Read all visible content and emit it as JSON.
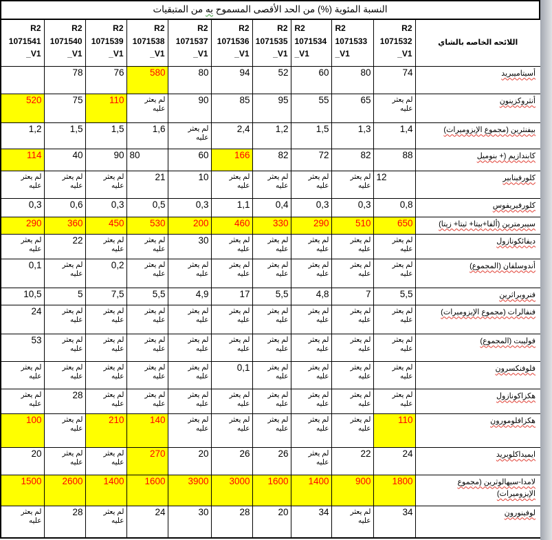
{
  "title": {
    "pre": "النسبة المئوية (%) من الحد الأقصى المسموح",
    "grammar_marked": "به",
    "post": "من المتبقيات"
  },
  "colors": {
    "highlight": "#ffff00",
    "alert_text": "#ff0000",
    "spellcheck_underline": "#e03a2f",
    "grammar_underline": "#3a9a3a",
    "strip_from": "#a3a8b0",
    "strip_to": "#dfe1e4"
  },
  "table": {
    "not_found_text": "لم يعثر عليه",
    "label_column_header": "اللائحه الخاصه بالشاي",
    "columns": [
      {
        "label": "R2\n1071541\n_V1"
      },
      {
        "label": "R2\n1071540\n_V1"
      },
      {
        "label": "R2\n1071539\n_V1"
      },
      {
        "label": "R2\n1071538\n_V1"
      },
      {
        "label": "R2\n1071537\n_V1"
      },
      {
        "label": "R2\n1071536\n_V1"
      },
      {
        "label": "R2\n1071535\n_V1"
      },
      {
        "label": "R2\n1071534\n_V1",
        "align": "left"
      },
      {
        "label": "R2\n1071533\n_V1",
        "align": "left"
      },
      {
        "label": "R2\n1071532\n_V1"
      }
    ],
    "rows": [
      {
        "label": "أسيتاميبريد",
        "cells": [
          "",
          "78",
          "76",
          {
            "v": "580",
            "hl": true
          },
          "80",
          "94",
          "52",
          "60",
          "80",
          "74"
        ]
      },
      {
        "label": "أنثروكزينون",
        "cells": [
          {
            "v": "520",
            "hl": true
          },
          "75",
          {
            "v": "110",
            "hl": true
          },
          "لم يعثر عليه",
          "90",
          "85",
          "95",
          "55",
          "65",
          "لم يعثر عليه"
        ]
      },
      {
        "label": "بيفنثرين (مجموع الإيزوميرات)",
        "cells": [
          "1,2",
          "1,5",
          "1,5",
          "1,6",
          "لم يعثر عليه",
          "2,4",
          "1,2",
          "1,5",
          "1,3",
          "1,4"
        ]
      },
      {
        "label": "كابندازيم (+ بنوميل",
        "cells": [
          {
            "v": "114",
            "hl": true
          },
          "40",
          "90",
          {
            "v": "80",
            "align": "left"
          },
          "60",
          {
            "v": "166",
            "hl": true
          },
          "82",
          "72",
          "82",
          "88"
        ]
      },
      {
        "label": "كلورفينابير",
        "cells": [
          "لم يعثر عليه",
          "لم يعثر عليه",
          "لم يعثر عليه",
          "21",
          "10",
          "لم يعثر عليه",
          "لم يعثر عليه",
          "لم يعثر عليه",
          "لم يعثر عليه",
          {
            "v": "12",
            "align": "left"
          }
        ]
      },
      {
        "label": "كلورفيريفوس",
        "cells": [
          "0,3",
          "0,6",
          "0,3",
          "0,5",
          "0,3",
          "1,1",
          "0,4",
          "0,3",
          "0,3",
          "0,8"
        ]
      },
      {
        "label": "سيبرمترين (ألفا+بيتا+ ثيتا+ زيتا)",
        "cells": [
          {
            "v": "290",
            "hl": true
          },
          {
            "v": "360",
            "hl": true
          },
          {
            "v": "450",
            "hl": true
          },
          {
            "v": "530",
            "hl": true
          },
          {
            "v": "200",
            "hl": true
          },
          {
            "v": "460",
            "hl": true
          },
          {
            "v": "330",
            "hl": true
          },
          {
            "v": "290",
            "hl": true
          },
          {
            "v": "510",
            "hl": true
          },
          {
            "v": "650",
            "hl": true
          }
        ]
      },
      {
        "label": "ديفائكونازول",
        "cells": [
          "لم يعثر عليه",
          "22",
          "لم يعثر عليه",
          "لم يعثر عليه",
          "30",
          "لم يعثر عليه",
          "لم يعثر عليه",
          "لم يعثر عليه",
          "لم يعثر عليه",
          "لم يعثر عليه"
        ]
      },
      {
        "label": "أندوسلفان (المجموع)",
        "cells": [
          "0,1",
          "لم يعثر عليه",
          "0,2",
          "لم يعثر عليه",
          "لم يعثر عليه",
          "لم يعثر عليه",
          "لم يعثر عليه",
          "لم يعثر عليه",
          "لم يعثر عليه",
          "لم يعثر عليه"
        ]
      },
      {
        "label": "فنروبراثرين",
        "cells": [
          "10,5",
          "5",
          "7,5",
          "5,5",
          "4,9",
          "17",
          "5,5",
          "4,8",
          "7",
          "5,5"
        ]
      },
      {
        "label": "فنفالرات (مجموع الإيزوميرات)",
        "cells": [
          "24",
          "لم يعثر عليه",
          "لم يعثر عليه",
          "لم يعثر عليه",
          "لم يعثر عليه",
          "لم يعثر عليه",
          "لم يعثر عليه",
          "لم يعثر عليه",
          "لم يعثر عليه",
          "لم يعثر عليه"
        ]
      },
      {
        "label": "فوليبت (المجموع)",
        "cells": [
          "53",
          "لم يعثر عليه",
          "لم يعثر عليه",
          "لم يعثر عليه",
          "لم يعثر عليه",
          "لم يعثر عليه",
          "لم يعثر عليه",
          "لم يعثر عليه",
          "لم يعثر عليه",
          "لم يعثر عليه"
        ]
      },
      {
        "label": "فلوفنكسرون",
        "cells": [
          "لم يعثر عليه",
          "لم يعثر عليه",
          "لم يعثر عليه",
          "لم يعثر عليه",
          "لم يعثر عليه",
          "0,1",
          "لم يعثر عليه",
          "لم يعثر عليه",
          "لم يعثر عليه",
          "لم يعثر عليه"
        ]
      },
      {
        "label": "هكزاكونازول",
        "cells": [
          "لم يعثر عليه",
          "28",
          "لم يعثر عليه",
          "لم يعثر عليه",
          "لم يعثر عليه",
          "لم يعثر عليه",
          "لم يعثر عليه",
          "لم يعثر عليه",
          "لم يعثر عليه",
          "لم يعثر عليه"
        ]
      },
      {
        "label": "هكزافلومورون",
        "cells": [
          {
            "v": "100",
            "hl": true
          },
          "لم يعثر عليه",
          {
            "v": "210",
            "hl": true
          },
          {
            "v": "140",
            "hl": true
          },
          "لم يعثر عليه",
          "لم يعثر عليه",
          "لم يعثر عليه",
          "لم يعثر عليه",
          "لم يعثر عليه",
          {
            "v": "110",
            "hl": true
          }
        ]
      },
      {
        "label": "ايميداكلوبريد",
        "cells": [
          "20",
          "لم يعثر عليه",
          "لم يعثر عليه",
          {
            "v": "270",
            "hl": true
          },
          "20",
          "26",
          "26",
          "لم يعثر عليه",
          "22",
          "24"
        ]
      },
      {
        "label": "لامدا-سيهالوثرين (مجموع الإيزوميرات)",
        "cells": [
          {
            "v": "1500",
            "hl": true
          },
          {
            "v": "2600",
            "hl": true
          },
          {
            "v": "1400",
            "hl": true
          },
          {
            "v": "1600",
            "hl": true
          },
          {
            "v": "3900",
            "hl": true
          },
          {
            "v": "3000",
            "hl": true
          },
          {
            "v": "1600",
            "hl": true
          },
          {
            "v": "1400",
            "hl": true
          },
          {
            "v": "900",
            "hl": true
          },
          {
            "v": "1800",
            "hl": true
          }
        ]
      },
      {
        "label": "لوفينورون",
        "cells": [
          "لم يعثر عليه",
          "28",
          "لم يعثر عليه",
          "24",
          "30",
          "28",
          "20",
          "34",
          "لم يعثر عليه",
          "34"
        ]
      }
    ]
  }
}
